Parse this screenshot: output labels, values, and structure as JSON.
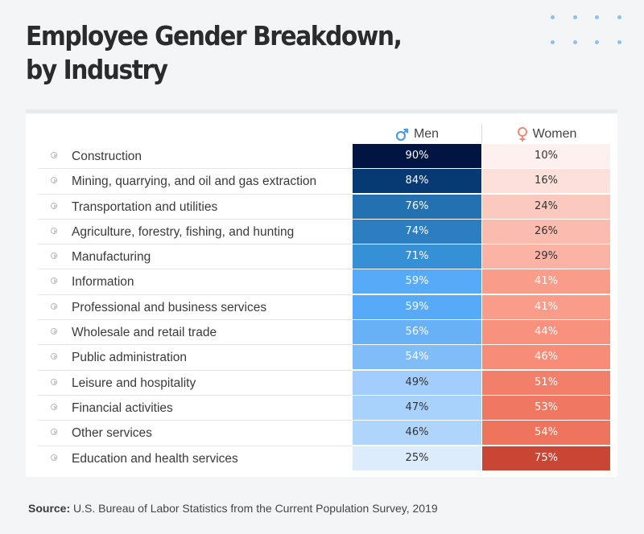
{
  "title_line1": "Employee Gender Breakdown,",
  "title_line2": "by Industry",
  "source_label": "Source:",
  "source_text": " U.S. Bureau of Labor Statistics from the Current Population Survey, 2019",
  "colors": {
    "men_icon": "#4f9de0",
    "women_icon": "#f08a78"
  },
  "chart_data": {
    "type": "table",
    "title": "Employee Gender Breakdown, by Industry",
    "columns": [
      {
        "name": "Men",
        "icon": "male-symbol-icon"
      },
      {
        "name": "Women",
        "icon": "female-symbol-icon"
      }
    ],
    "unit": "%",
    "rows": [
      {
        "industry": "Construction",
        "men": 90,
        "women": 10,
        "men_color": "#021442",
        "women_color": "#fdf0ee",
        "men_text": "#ffffff",
        "women_text": "#333333"
      },
      {
        "industry": "Mining, quarrying, and oil and gas extraction",
        "men": 84,
        "women": 16,
        "men_color": "#073a72",
        "women_color": "#fde0d9",
        "men_text": "#ffffff",
        "women_text": "#333333"
      },
      {
        "industry": "Transportation and utilities",
        "men": 76,
        "women": 24,
        "men_color": "#2471b2",
        "women_color": "#fcc9be",
        "men_text": "#ffffff",
        "women_text": "#333333"
      },
      {
        "industry": "Agriculture, forestry, fishing, and hunting",
        "men": 74,
        "women": 26,
        "men_color": "#2d7ec1",
        "women_color": "#fbbcaf",
        "men_text": "#ffffff",
        "women_text": "#333333"
      },
      {
        "industry": "Manufacturing",
        "men": 71,
        "women": 29,
        "men_color": "#3690d6",
        "women_color": "#fbb3a5",
        "men_text": "#ffffff",
        "women_text": "#333333"
      },
      {
        "industry": "Information",
        "men": 59,
        "women": 41,
        "men_color": "#57aaf7",
        "women_color": "#f99c89",
        "men_text": "#ffffff",
        "women_text": "#ffffff"
      },
      {
        "industry": "Professional and business services",
        "men": 59,
        "women": 41,
        "men_color": "#57aaf7",
        "women_color": "#f99c89",
        "men_text": "#ffffff",
        "women_text": "#ffffff"
      },
      {
        "industry": "Wholesale and retail trade",
        "men": 56,
        "women": 44,
        "men_color": "#69b1f7",
        "women_color": "#f8927e",
        "men_text": "#ffffff",
        "women_text": "#ffffff"
      },
      {
        "industry": "Public administration",
        "men": 54,
        "women": 46,
        "men_color": "#80bdf8",
        "women_color": "#f78c78",
        "men_text": "#ffffff",
        "women_text": "#ffffff"
      },
      {
        "industry": "Leisure and hospitality",
        "men": 49,
        "women": 51,
        "men_color": "#a2cdfc",
        "women_color": "#f27f69",
        "men_text": "#333333",
        "women_text": "#ffffff"
      },
      {
        "industry": "Financial activities",
        "men": 47,
        "women": 53,
        "men_color": "#a8d1fc",
        "women_color": "#f07862",
        "men_text": "#333333",
        "women_text": "#ffffff"
      },
      {
        "industry": "Other services",
        "men": 46,
        "women": 54,
        "men_color": "#b0d5fc",
        "women_color": "#ef745d",
        "men_text": "#333333",
        "women_text": "#ffffff"
      },
      {
        "industry": "Education and health services",
        "men": 25,
        "women": 75,
        "men_color": "#dcecfd",
        "women_color": "#c84633",
        "men_text": "#333333",
        "women_text": "#ffffff"
      }
    ]
  }
}
